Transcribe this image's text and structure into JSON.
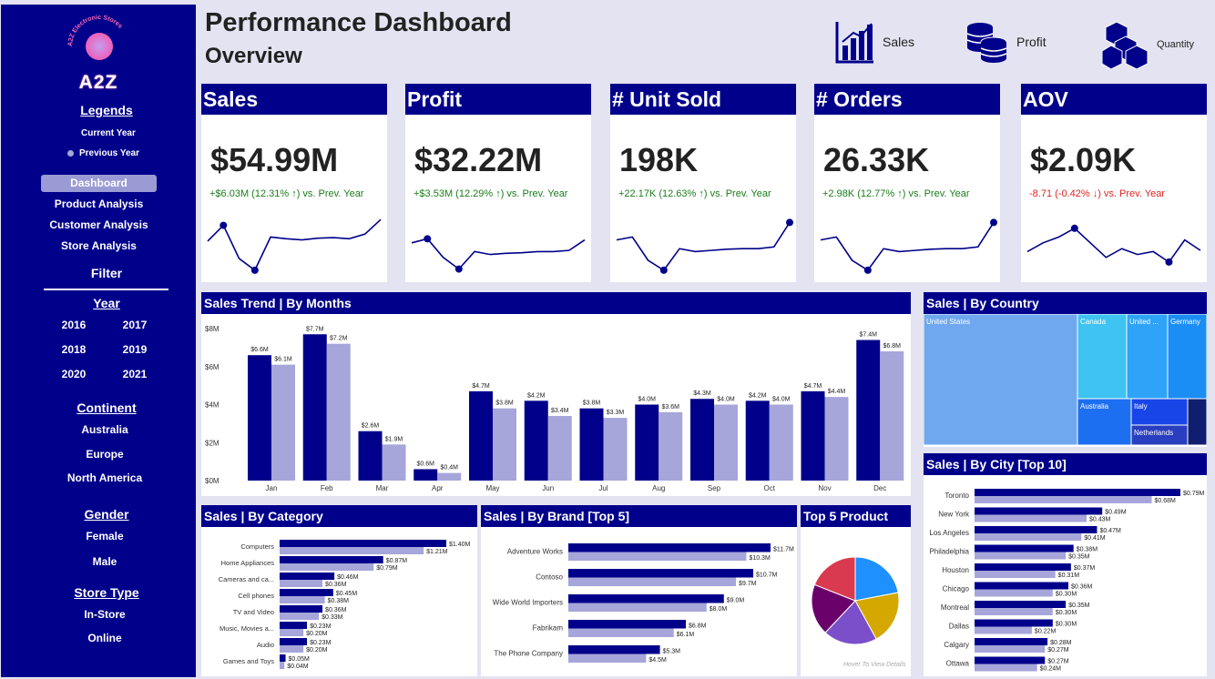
{
  "colors": {
    "current": "#00008b",
    "previous": "#a6a6da",
    "sidebar": "#00008b",
    "positive": "#1a7d1a",
    "negative": "#e02424"
  },
  "sidebar": {
    "logo_ring_text": "A2Z Electronic Stores",
    "logo_text": "A2Z",
    "legends_title": "Legends",
    "legend_current": "Current Year",
    "legend_previous": "Previous Year",
    "nav": [
      "Dashboard",
      "Product Analysis",
      "Customer Analysis",
      "Store Analysis"
    ],
    "filter_title": "Filter",
    "year_title": "Year",
    "years": [
      "2016",
      "2017",
      "2018",
      "2019",
      "2020",
      "2021"
    ],
    "continent_title": "Continent",
    "continents": [
      "Australia",
      "Europe",
      "North America"
    ],
    "gender_title": "Gender",
    "genders": [
      "Female",
      "Male"
    ],
    "store_title": "Store Type",
    "stores": [
      "In-Store",
      "Online"
    ]
  },
  "header": {
    "title": "Performance Dashboard",
    "subtitle": "Overview",
    "buttons": [
      {
        "label": "Sales",
        "icon": "bar-chart-icon"
      },
      {
        "label": "Profit",
        "icon": "coins-icon"
      },
      {
        "label": "Quantity",
        "icon": "boxes-icon"
      }
    ]
  },
  "kpis": [
    {
      "title": "Sales",
      "value": "$54.99M",
      "delta": "+$6.03M (12.31% ↑) vs. Prev. Year",
      "trend": "up",
      "spark": [
        0.42,
        0.15,
        0.72,
        0.92,
        0.35,
        0.38,
        0.4,
        0.37,
        0.36,
        0.38,
        0.3,
        0.05
      ],
      "marks": [
        1,
        3
      ]
    },
    {
      "title": "Profit",
      "value": "$32.22M",
      "delta": "+$3.53M (12.29% ↑) vs. Prev. Year",
      "trend": "up",
      "spark": [
        0.45,
        0.38,
        0.7,
        0.9,
        0.6,
        0.65,
        0.63,
        0.62,
        0.6,
        0.6,
        0.58,
        0.4
      ],
      "marks": [
        1,
        3
      ]
    },
    {
      "title": "# Unit Sold",
      "value": "198K",
      "delta": "+22.17K (12.63% ↑) vs. Prev. Year",
      "trend": "up",
      "spark": [
        0.4,
        0.35,
        0.75,
        0.92,
        0.55,
        0.6,
        0.58,
        0.56,
        0.55,
        0.55,
        0.52,
        0.1
      ],
      "marks": [
        3,
        11
      ]
    },
    {
      "title": "# Orders",
      "value": "26.33K",
      "delta": "+2.98K (12.77% ↑) vs. Prev. Year",
      "trend": "up",
      "spark": [
        0.4,
        0.35,
        0.75,
        0.92,
        0.55,
        0.6,
        0.58,
        0.56,
        0.55,
        0.55,
        0.52,
        0.1
      ],
      "marks": [
        3,
        11
      ]
    },
    {
      "title": "AOV",
      "value": "$2.09K",
      "delta": "-8.71 (-0.42% ↓) vs. Prev. Year",
      "trend": "down",
      "spark": [
        0.6,
        0.45,
        0.35,
        0.2,
        0.45,
        0.7,
        0.55,
        0.65,
        0.6,
        0.78,
        0.4,
        0.58
      ],
      "marks": [
        3,
        9
      ]
    }
  ],
  "sales_trend": {
    "title": "Sales Trend | By Months",
    "chart_data": {
      "type": "bar",
      "categories": [
        "Jan",
        "Feb",
        "Mar",
        "Apr",
        "May",
        "Jun",
        "Jul",
        "Aug",
        "Sep",
        "Oct",
        "Nov",
        "Dec"
      ],
      "series": [
        {
          "values": [
            6.6,
            7.7,
            2.6,
            0.6,
            4.7,
            4.2,
            3.8,
            4.0,
            4.3,
            4.2,
            4.7,
            7.4
          ],
          "labels": [
            "$6.6M",
            "$7.7M",
            "$2.6M",
            "$0.6M",
            "$4.7M",
            "$4.2M",
            "$3.8M",
            "$4.0M",
            "$4.3M",
            "$4.2M",
            "$4.7M",
            "$7.4M"
          ]
        },
        {
          "values": [
            6.1,
            7.2,
            1.9,
            0.4,
            3.8,
            3.4,
            3.3,
            3.6,
            4.0,
            4.0,
            4.4,
            6.8
          ],
          "labels": [
            "$6.1M",
            "$7.2M",
            "$1.9M",
            "$0.4M",
            "$3.8M",
            "$3.4M",
            "$3.3M",
            "$3.6M",
            "$4.0M",
            "$4.0M",
            "$4.4M",
            "$6.8M"
          ]
        }
      ],
      "yticks": [
        "$0M",
        "$2M",
        "$4M",
        "$6M",
        "$8M"
      ],
      "ylim": [
        0,
        8
      ]
    }
  },
  "by_country": {
    "title": "Sales | By Country",
    "cells": [
      {
        "label": "United States",
        "color": "#6fa8ee"
      },
      {
        "label": "Canada",
        "color": "#3ec3f2"
      },
      {
        "label": "United ...",
        "color": "#2fa3f7"
      },
      {
        "label": "Germany",
        "color": "#1a8ef5"
      },
      {
        "label": "Australia",
        "color": "#1d6ff2"
      },
      {
        "label": "Italy",
        "color": "#1745e8"
      },
      {
        "label": "Netherlands",
        "color": "#2a3fbf"
      },
      {
        "label": "",
        "color": "#0f1e6e"
      }
    ]
  },
  "by_city": {
    "title": "Sales | By City [Top 10]",
    "chart_data": {
      "type": "bar",
      "categories": [
        "Toronto",
        "New York",
        "Los Angeles",
        "Philadelphia",
        "Houston",
        "Chicago",
        "Montreal",
        "Dallas",
        "Calgary",
        "Ottawa"
      ],
      "series": [
        {
          "values": [
            0.79,
            0.49,
            0.47,
            0.38,
            0.37,
            0.36,
            0.35,
            0.3,
            0.28,
            0.27
          ],
          "labels": [
            "$0.79M",
            "$0.49M",
            "$0.47M",
            "$0.38M",
            "$0.37M",
            "$0.36M",
            "$0.35M",
            "$0.30M",
            "$0.28M",
            "$0.27M"
          ]
        },
        {
          "values": [
            0.68,
            0.43,
            0.41,
            0.35,
            0.31,
            0.3,
            0.3,
            0.22,
            0.27,
            0.24
          ],
          "labels": [
            "$0.68M",
            "$0.43M",
            "$0.41M",
            "$0.35M",
            "$0.31M",
            "$0.30M",
            "$0.30M",
            "$0.22M",
            "$0.27M",
            "$0.24M"
          ]
        }
      ]
    }
  },
  "by_category": {
    "title": "Sales | By Category",
    "chart_data": {
      "type": "bar",
      "categories": [
        "Computers",
        "Home Appliances",
        "Cameras and ca...",
        "Cell phones",
        "TV and Video",
        "Music, Movies a...",
        "Audio",
        "Games and Toys"
      ],
      "series": [
        {
          "values": [
            1.4,
            0.87,
            0.46,
            0.45,
            0.36,
            0.23,
            0.23,
            0.05
          ],
          "labels": [
            "$1.40M",
            "$0.87M",
            "$0.46M",
            "$0.45M",
            "$0.36M",
            "$0.23M",
            "$0.23M",
            "$0.05M"
          ]
        },
        {
          "values": [
            1.21,
            0.79,
            0.36,
            0.38,
            0.33,
            0.2,
            0.2,
            0.04
          ],
          "labels": [
            "$1.21M",
            "$0.79M",
            "$0.36M",
            "$0.38M",
            "$0.33M",
            "$0.20M",
            "$0.20M",
            "$0.04M"
          ]
        }
      ]
    }
  },
  "by_brand": {
    "title": "Sales | By Brand [Top 5]",
    "chart_data": {
      "type": "bar",
      "categories": [
        "Adventure Works",
        "Contoso",
        "Wide World Importers",
        "Fabrikam",
        "The Phone Company"
      ],
      "series": [
        {
          "values": [
            11.7,
            10.7,
            9.0,
            6.8,
            5.3
          ],
          "labels": [
            "$11.7M",
            "$10.7M",
            "$9.0M",
            "$6.8M",
            "$5.3M"
          ]
        },
        {
          "values": [
            10.3,
            9.7,
            8.0,
            6.1,
            4.5
          ],
          "labels": [
            "$10.3M",
            "$9.7M",
            "$8.0M",
            "$6.1M",
            "$4.5M"
          ]
        }
      ]
    }
  },
  "top_product": {
    "title": "Top 5 Product",
    "hint": "Hover To View Details",
    "chart_data": {
      "type": "pie",
      "values": [
        22,
        20,
        20,
        19,
        19
      ],
      "colors": [
        "#1e90ff",
        "#d4a800",
        "#7b4fc9",
        "#6a006a",
        "#d93a4f"
      ]
    }
  }
}
